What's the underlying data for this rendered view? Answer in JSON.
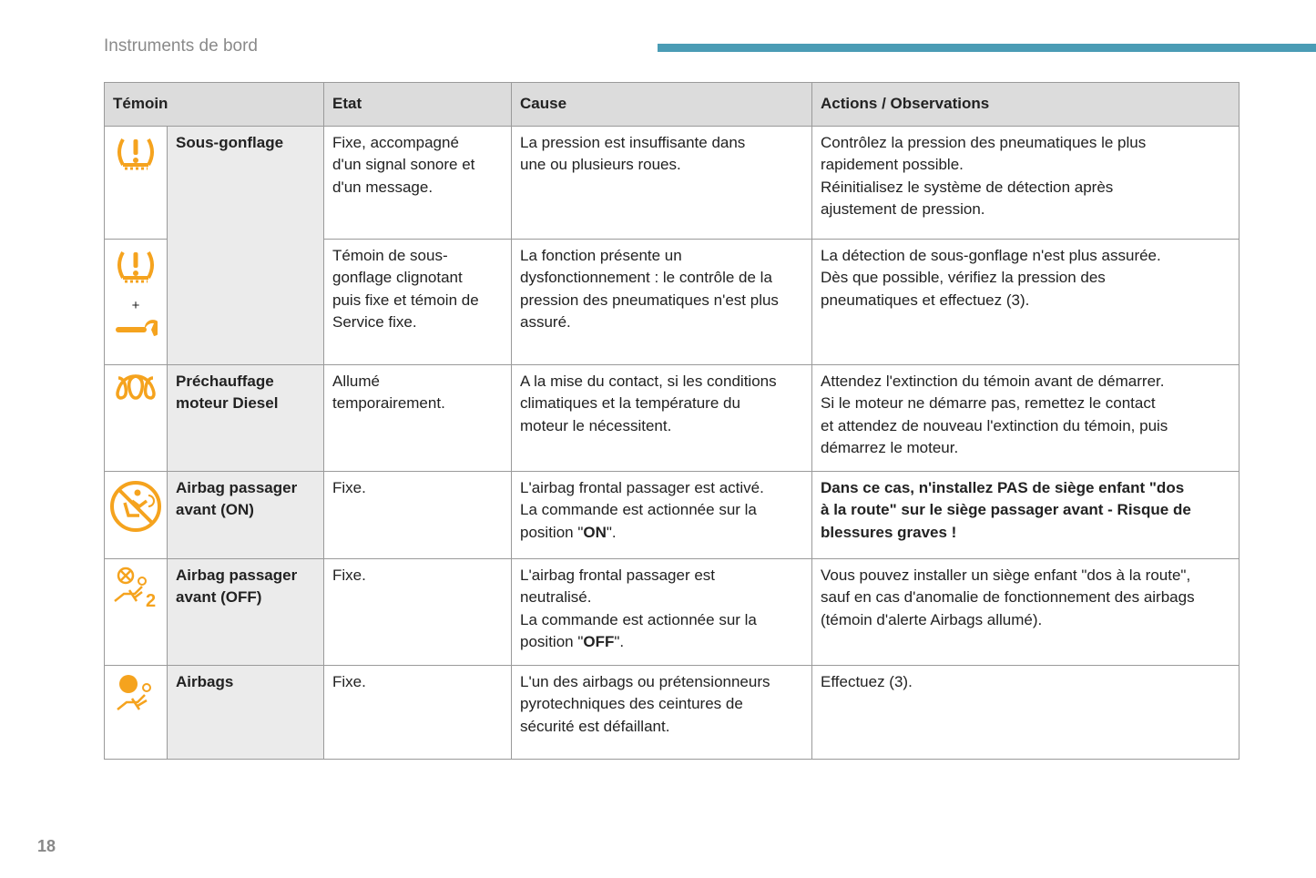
{
  "header": {
    "section_title": "Instruments de bord",
    "page_number": "18"
  },
  "colors": {
    "accent": "#4a9cb5",
    "icon": "#f5a31e"
  },
  "table": {
    "headers": [
      "Témoin",
      "Etat",
      "Cause",
      "Actions / Observations"
    ],
    "rows": [
      {
        "icons": [
          "tyre-pressure-icon"
        ],
        "name": [
          "Sous-gonflage"
        ],
        "etat": [
          "Fixe, accompagné",
          "d'un signal sonore et",
          "d'un message."
        ],
        "cause": [
          "La pression est insuffisante dans",
          "une ou plusieurs roues."
        ],
        "actions": [
          "Contrôlez la pression des pneumatiques le plus",
          "rapidement possible.",
          "Réinitialisez le système de détection après",
          "ajustement de pression."
        ]
      },
      {
        "icons": [
          "tyre-pressure-icon",
          "plus",
          "wrench-icon"
        ],
        "plus": "+",
        "etat": [
          "Témoin de sous-",
          "gonflage clignotant",
          "puis fixe et témoin de",
          "Service fixe."
        ],
        "cause": [
          "La fonction présente un",
          "dysfonctionnement : le contrôle de la",
          "pression des pneumatiques n'est plus",
          "assuré."
        ],
        "actions": [
          "La détection de sous-gonflage n'est plus assurée.",
          "Dès que possible, vérifiez la pression des",
          "pneumatiques et effectuez (3)."
        ]
      },
      {
        "icons": [
          "glow-plug-icon"
        ],
        "name": [
          "Préchauffage",
          "moteur Diesel"
        ],
        "etat": [
          "Allumé",
          "temporairement."
        ],
        "cause": [
          "A la mise du contact, si les conditions",
          "climatiques et la température du",
          "moteur le nécessitent."
        ],
        "actions": [
          "Attendez l'extinction du témoin avant de démarrer.",
          "Si le moteur ne démarre pas, remettez le contact",
          "et attendez de nouveau l'extinction du témoin, puis",
          "démarrez le moteur."
        ]
      },
      {
        "icons": [
          "airbag-on-icon"
        ],
        "name": [
          "Airbag passager",
          "avant (ON)"
        ],
        "etat": [
          "Fixe."
        ],
        "cause": [
          "L'airbag frontal passager est activé.",
          "La commande est actionnée sur la",
          {
            "pre": "position \"",
            "bold": "ON",
            "post": "\"."
          }
        ],
        "actions_bold": true,
        "actions": [
          "Dans ce cas, n'installez PAS de siège enfant \"dos",
          "à la route\" sur le siège passager avant - Risque de",
          "blessures graves !"
        ]
      },
      {
        "icons": [
          "airbag-off-icon"
        ],
        "name": [
          "Airbag passager",
          "avant (OFF)"
        ],
        "etat": [
          "Fixe."
        ],
        "cause": [
          "L'airbag frontal passager est",
          "neutralisé.",
          "La commande est actionnée sur la",
          {
            "pre": "position \"",
            "bold": "OFF",
            "post": "\"."
          }
        ],
        "actions": [
          "Vous pouvez installer un siège enfant \"dos à la route\",",
          "sauf en cas d'anomalie de fonctionnement des airbags",
          "(témoin d'alerte Airbags allumé)."
        ]
      },
      {
        "icons": [
          "airbag-fault-icon"
        ],
        "name": [
          "Airbags"
        ],
        "etat": [
          "Fixe."
        ],
        "cause": [
          "L'un des airbags ou prétensionneurs",
          "pyrotechniques des ceintures de",
          "sécurité est défaillant."
        ],
        "actions": [
          "Effectuez (3)."
        ]
      }
    ]
  }
}
